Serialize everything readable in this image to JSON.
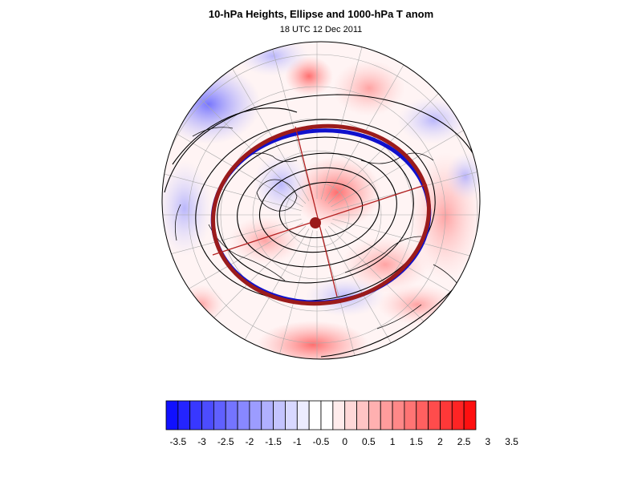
{
  "figure": {
    "title": "10-hPa Heights, Ellipse and 1000-hPa T anom",
    "subtitle": "18 UTC 12 Dec 2011"
  },
  "colorbar": {
    "colors": [
      "#1010ff",
      "#2424ff",
      "#3838ff",
      "#4c4cff",
      "#6060ff",
      "#7474ff",
      "#8888ff",
      "#9c9cff",
      "#b0b0ff",
      "#c4c4ff",
      "#d8d8ff",
      "#ececff",
      "#ffffff",
      "#ffffff",
      "#ffecec",
      "#ffd8d8",
      "#ffc4c4",
      "#ffb0b0",
      "#ff9c9c",
      "#ff8888",
      "#ff7474",
      "#ff6060",
      "#ff4c4c",
      "#ff3838",
      "#ff2424",
      "#ff1010"
    ],
    "tick_labels": [
      "-3.5",
      "-3",
      "-2.5",
      "-2",
      "-1.5",
      "-1",
      "-0.5",
      "0",
      "0.5",
      "1",
      "1.5",
      "2",
      "2.5",
      "3",
      "3.5"
    ]
  },
  "map": {
    "projection": "north polar stereographic",
    "ellipse_colors": [
      "#1010cc",
      "#9b1b1b"
    ]
  }
}
